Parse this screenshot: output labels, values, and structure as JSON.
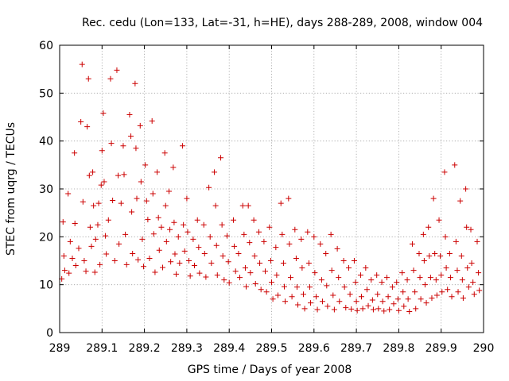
{
  "chart_data": {
    "type": "scatter",
    "title": "Rec. cedu (Lon=133, Lat=-31, h=HE), days 288-289, 2008, window 004",
    "xlabel": "GPS time / Days of year 2008",
    "ylabel": "STEC from uqrg / TECUs",
    "xlim": [
      289,
      290
    ],
    "ylim": [
      0,
      60
    ],
    "x_ticks": [
      289,
      289.1,
      289.2,
      289.3,
      289.4,
      289.5,
      289.6,
      289.7,
      289.8,
      289.9,
      290
    ],
    "x_tick_labels": [
      "289",
      "289.1",
      "289.2",
      "289.3",
      "289.4",
      "289.5",
      "289.6",
      "289.7",
      "289.8",
      "289.9",
      "290"
    ],
    "y_ticks": [
      0,
      10,
      20,
      30,
      40,
      50,
      60
    ],
    "y_tick_labels": [
      "0",
      "10",
      "20",
      "30",
      "40",
      "50",
      "60"
    ],
    "grid": true,
    "marker": "+",
    "marker_color": "#cc0000",
    "series": [
      {
        "name": "STEC",
        "points": [
          [
            289.005,
            11.2
          ],
          [
            289.008,
            23.1
          ],
          [
            289.01,
            16.0
          ],
          [
            289.012,
            13.0
          ],
          [
            289.02,
            29.0
          ],
          [
            289.022,
            12.4
          ],
          [
            289.025,
            19.0
          ],
          [
            289.03,
            15.5
          ],
          [
            289.035,
            37.5
          ],
          [
            289.036,
            22.8
          ],
          [
            289.038,
            14.0
          ],
          [
            289.045,
            17.6
          ],
          [
            289.05,
            44.0
          ],
          [
            289.053,
            56.0
          ],
          [
            289.055,
            27.3
          ],
          [
            289.058,
            15.0
          ],
          [
            289.062,
            12.8
          ],
          [
            289.065,
            43.0
          ],
          [
            289.068,
            53.0
          ],
          [
            289.07,
            32.8
          ],
          [
            289.072,
            22.0
          ],
          [
            289.075,
            18.0
          ],
          [
            289.078,
            33.5
          ],
          [
            289.08,
            26.5
          ],
          [
            289.083,
            12.6
          ],
          [
            289.085,
            19.5
          ],
          [
            289.09,
            22.5
          ],
          [
            289.092,
            27.0
          ],
          [
            289.095,
            14.2
          ],
          [
            289.098,
            30.8
          ],
          [
            289.1,
            38.0
          ],
          [
            289.103,
            45.8
          ],
          [
            289.105,
            31.5
          ],
          [
            289.108,
            20.2
          ],
          [
            289.11,
            16.4
          ],
          [
            289.115,
            23.5
          ],
          [
            289.12,
            53.0
          ],
          [
            289.122,
            39.5
          ],
          [
            289.125,
            27.6
          ],
          [
            289.13,
            15.0
          ],
          [
            289.135,
            54.8
          ],
          [
            289.138,
            32.8
          ],
          [
            289.14,
            18.5
          ],
          [
            289.145,
            27.0
          ],
          [
            289.15,
            39.0
          ],
          [
            289.152,
            33.0
          ],
          [
            289.155,
            20.5
          ],
          [
            289.158,
            14.2
          ],
          [
            289.165,
            45.5
          ],
          [
            289.168,
            41.0
          ],
          [
            289.17,
            25.2
          ],
          [
            289.172,
            16.5
          ],
          [
            289.178,
            52.0
          ],
          [
            289.18,
            38.5
          ],
          [
            289.182,
            28.0
          ],
          [
            289.185,
            15.2
          ],
          [
            289.19,
            43.2
          ],
          [
            289.192,
            31.5
          ],
          [
            289.195,
            19.5
          ],
          [
            289.198,
            13.8
          ],
          [
            289.202,
            35.0
          ],
          [
            289.205,
            27.5
          ],
          [
            289.208,
            23.6
          ],
          [
            289.212,
            15.5
          ],
          [
            289.218,
            44.2
          ],
          [
            289.22,
            29.0
          ],
          [
            289.222,
            20.6
          ],
          [
            289.225,
            12.6
          ],
          [
            289.23,
            33.5
          ],
          [
            289.233,
            24.0
          ],
          [
            289.235,
            17.2
          ],
          [
            289.24,
            22.0
          ],
          [
            289.243,
            13.6
          ],
          [
            289.248,
            37.5
          ],
          [
            289.25,
            26.5
          ],
          [
            289.252,
            19.0
          ],
          [
            289.258,
            29.5
          ],
          [
            289.26,
            21.5
          ],
          [
            289.262,
            14.8
          ],
          [
            289.268,
            34.5
          ],
          [
            289.27,
            23.0
          ],
          [
            289.272,
            16.4
          ],
          [
            289.275,
            12.2
          ],
          [
            289.28,
            20.0
          ],
          [
            289.283,
            14.5
          ],
          [
            289.29,
            39.0
          ],
          [
            289.292,
            22.5
          ],
          [
            289.295,
            17.0
          ],
          [
            289.3,
            28.0
          ],
          [
            289.302,
            21.0
          ],
          [
            289.305,
            15.0
          ],
          [
            289.308,
            11.8
          ],
          [
            289.315,
            19.5
          ],
          [
            289.318,
            14.0
          ],
          [
            289.325,
            23.5
          ],
          [
            289.328,
            17.8
          ],
          [
            289.33,
            12.4
          ],
          [
            289.34,
            22.5
          ],
          [
            289.342,
            16.5
          ],
          [
            289.345,
            11.6
          ],
          [
            289.352,
            30.3
          ],
          [
            289.355,
            20.0
          ],
          [
            289.358,
            14.5
          ],
          [
            289.365,
            33.5
          ],
          [
            289.368,
            26.5
          ],
          [
            289.37,
            18.2
          ],
          [
            289.372,
            12.0
          ],
          [
            289.38,
            36.5
          ],
          [
            289.383,
            22.5
          ],
          [
            289.385,
            16.0
          ],
          [
            289.388,
            11.0
          ],
          [
            289.395,
            20.2
          ],
          [
            289.398,
            14.8
          ],
          [
            289.4,
            10.4
          ],
          [
            289.41,
            23.5
          ],
          [
            289.412,
            18.0
          ],
          [
            289.415,
            12.8
          ],
          [
            289.422,
            16.5
          ],
          [
            289.425,
            11.5
          ],
          [
            289.432,
            26.5
          ],
          [
            289.435,
            20.5
          ],
          [
            289.438,
            13.5
          ],
          [
            289.44,
            9.6
          ],
          [
            289.445,
            26.5
          ],
          [
            289.448,
            18.8
          ],
          [
            289.45,
            12.5
          ],
          [
            289.458,
            23.5
          ],
          [
            289.46,
            16.0
          ],
          [
            289.462,
            10.2
          ],
          [
            289.47,
            21.0
          ],
          [
            289.472,
            14.5
          ],
          [
            289.475,
            9.0
          ],
          [
            289.482,
            19.0
          ],
          [
            289.485,
            12.8
          ],
          [
            289.488,
            8.5
          ],
          [
            289.495,
            22.0
          ],
          [
            289.498,
            15.0
          ],
          [
            289.5,
            10.5
          ],
          [
            289.503,
            7.0
          ],
          [
            289.51,
            17.8
          ],
          [
            289.512,
            12.0
          ],
          [
            289.515,
            7.8
          ],
          [
            289.522,
            27.0
          ],
          [
            289.525,
            20.5
          ],
          [
            289.528,
            14.5
          ],
          [
            289.53,
            9.6
          ],
          [
            289.532,
            6.5
          ],
          [
            289.54,
            28.0
          ],
          [
            289.542,
            18.5
          ],
          [
            289.545,
            11.5
          ],
          [
            289.548,
            7.5
          ],
          [
            289.555,
            21.5
          ],
          [
            289.558,
            15.5
          ],
          [
            289.56,
            9.5
          ],
          [
            289.562,
            5.8
          ],
          [
            289.57,
            19.5
          ],
          [
            289.572,
            13.5
          ],
          [
            289.575,
            8.0
          ],
          [
            289.578,
            5.0
          ],
          [
            289.585,
            21.0
          ],
          [
            289.588,
            14.5
          ],
          [
            289.59,
            9.5
          ],
          [
            289.592,
            6.2
          ],
          [
            289.6,
            20.0
          ],
          [
            289.602,
            12.5
          ],
          [
            289.605,
            7.5
          ],
          [
            289.608,
            4.8
          ],
          [
            289.615,
            18.5
          ],
          [
            289.618,
            11.0
          ],
          [
            289.62,
            6.5
          ],
          [
            289.628,
            16.5
          ],
          [
            289.63,
            9.8
          ],
          [
            289.632,
            5.5
          ],
          [
            289.64,
            20.5
          ],
          [
            289.642,
            13.0
          ],
          [
            289.645,
            7.8
          ],
          [
            289.648,
            4.8
          ],
          [
            289.655,
            17.5
          ],
          [
            289.658,
            11.5
          ],
          [
            289.66,
            6.5
          ],
          [
            289.67,
            15.0
          ],
          [
            289.672,
            9.5
          ],
          [
            289.675,
            5.2
          ],
          [
            289.682,
            13.5
          ],
          [
            289.685,
            8.0
          ],
          [
            289.688,
            4.9
          ],
          [
            289.695,
            15.0
          ],
          [
            289.698,
            10.5
          ],
          [
            289.7,
            6.5
          ],
          [
            289.702,
            4.6
          ],
          [
            289.71,
            12.0
          ],
          [
            289.712,
            7.5
          ],
          [
            289.715,
            5.0
          ],
          [
            289.722,
            13.5
          ],
          [
            289.725,
            9.0
          ],
          [
            289.728,
            5.6
          ],
          [
            289.735,
            11.0
          ],
          [
            289.738,
            6.8
          ],
          [
            289.74,
            4.8
          ],
          [
            289.748,
            12.0
          ],
          [
            289.75,
            8.0
          ],
          [
            289.752,
            5.0
          ],
          [
            289.76,
            10.5
          ],
          [
            289.762,
            6.5
          ],
          [
            289.765,
            4.5
          ],
          [
            289.772,
            11.5
          ],
          [
            289.775,
            7.5
          ],
          [
            289.778,
            4.8
          ],
          [
            289.785,
            9.5
          ],
          [
            289.788,
            6.0
          ],
          [
            289.795,
            10.5
          ],
          [
            289.798,
            7.0
          ],
          [
            289.8,
            4.6
          ],
          [
            289.808,
            12.5
          ],
          [
            289.81,
            8.5
          ],
          [
            289.812,
            5.5
          ],
          [
            289.82,
            11.0
          ],
          [
            289.822,
            7.0
          ],
          [
            289.825,
            4.4
          ],
          [
            289.832,
            18.5
          ],
          [
            289.835,
            13.0
          ],
          [
            289.838,
            8.5
          ],
          [
            289.84,
            5.0
          ],
          [
            289.848,
            16.5
          ],
          [
            289.85,
            11.5
          ],
          [
            289.852,
            7.0
          ],
          [
            289.858,
            20.5
          ],
          [
            289.86,
            15.0
          ],
          [
            289.862,
            10.0
          ],
          [
            289.865,
            6.2
          ],
          [
            289.87,
            22.0
          ],
          [
            289.872,
            16.0
          ],
          [
            289.875,
            11.5
          ],
          [
            289.878,
            7.2
          ],
          [
            289.882,
            28.0
          ],
          [
            289.885,
            16.5
          ],
          [
            289.888,
            11.0
          ],
          [
            289.89,
            7.8
          ],
          [
            289.895,
            23.5
          ],
          [
            289.898,
            16.0
          ],
          [
            289.9,
            12.0
          ],
          [
            289.902,
            8.5
          ],
          [
            289.908,
            33.5
          ],
          [
            289.91,
            20.0
          ],
          [
            289.912,
            13.5
          ],
          [
            289.915,
            9.0
          ],
          [
            289.92,
            16.5
          ],
          [
            289.922,
            11.5
          ],
          [
            289.925,
            7.5
          ],
          [
            289.932,
            35.0
          ],
          [
            289.935,
            19.0
          ],
          [
            289.938,
            13.0
          ],
          [
            289.94,
            8.5
          ],
          [
            289.945,
            27.5
          ],
          [
            289.948,
            16.0
          ],
          [
            289.95,
            11.0
          ],
          [
            289.952,
            7.2
          ],
          [
            289.958,
            30.0
          ],
          [
            289.96,
            22.0
          ],
          [
            289.962,
            13.5
          ],
          [
            289.965,
            9.5
          ],
          [
            289.97,
            21.5
          ],
          [
            289.972,
            14.5
          ],
          [
            289.975,
            10.5
          ],
          [
            289.978,
            8.0
          ],
          [
            289.985,
            19.0
          ],
          [
            289.988,
            12.5
          ],
          [
            289.99,
            8.8
          ]
        ]
      }
    ]
  }
}
